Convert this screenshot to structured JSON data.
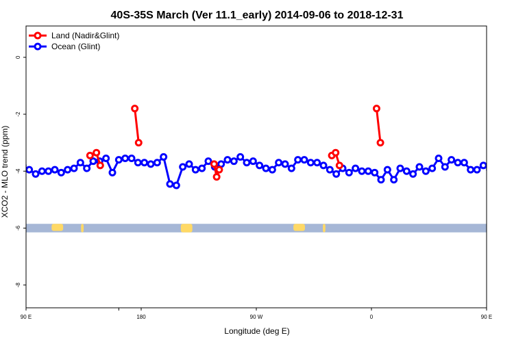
{
  "chart_data": {
    "type": "line",
    "title": "40S-35S March (Ver 11.1_early)   2014-09-06 to 2018-12-31",
    "xlabel": "Longitude (deg E)",
    "ylabel": "XCO2 - MLO trend (ppm)",
    "xlim": [
      90,
      450
    ],
    "ylim": [
      -8.8,
      1.1
    ],
    "x_ticks": [
      {
        "value": 90,
        "label": "90 E"
      },
      {
        "value": 162.5,
        "label": ""
      },
      {
        "value": 180,
        "label": "180"
      },
      {
        "value": 270,
        "label": "90 W"
      },
      {
        "value": 360,
        "label": "0"
      },
      {
        "value": 450,
        "label": "90 E"
      },
      {
        "value": 540,
        "label": "180"
      }
    ],
    "y_ticks": [
      {
        "value": 0,
        "label": "0"
      },
      {
        "value": -2,
        "label": "-2"
      },
      {
        "value": -4,
        "label": "-4"
      },
      {
        "value": -6,
        "label": "-6"
      },
      {
        "value": -8,
        "label": "-8"
      }
    ],
    "legend_position": "top-left",
    "colors": {
      "land": "#ff0000",
      "ocean": "#0000ff",
      "land_mask": "#ffd966",
      "ocean_band": "#a6b7d6"
    },
    "series": [
      {
        "name": "Land (Nadir&Glint)",
        "color": "#ff0000",
        "segments": [
          {
            "x": [
              140,
              145,
              148
            ],
            "y": [
              -3.45,
              -3.35,
              -3.8
            ]
          },
          {
            "x": [
              175,
              178
            ],
            "y": [
              -1.8,
              -3.0
            ]
          },
          {
            "x": [
              237,
              239,
              241
            ],
            "y": [
              -3.75,
              -4.2,
              -3.95
            ]
          },
          {
            "x": [
              329,
              332,
              335
            ],
            "y": [
              -3.45,
              -3.35,
              -3.8
            ]
          },
          {
            "x": [
              364,
              367
            ],
            "y": [
              -1.8,
              -3.0
            ]
          }
        ]
      },
      {
        "name": "Ocean (Glint)",
        "color": "#0000ff",
        "segments": [
          {
            "x": [
              2.5,
              7.5,
              12.5,
              17.5,
              22.5,
              27.5,
              32.5,
              37.5,
              42.5,
              47.5,
              52.5,
              57.5,
              62.5,
              67.5,
              72.5,
              77.5,
              82.5,
              87.5,
              92.5,
              97.5,
              102.5,
              107.5,
              112.5,
              117.5,
              122.5,
              127.5,
              132.5,
              137.5,
              142.5,
              147.5,
              152.5,
              157.5,
              162.5,
              167.5,
              172.5,
              177.5,
              182.5,
              187.5,
              192.5,
              197.5,
              202.5,
              207.5,
              212.5,
              217.5,
              222.5,
              227.5,
              232.5,
              237.5,
              242.5,
              247.5,
              252.5,
              257.5,
              262.5,
              267.5,
              272.5,
              277.5,
              282.5,
              287.5,
              292.5,
              297.5,
              302.5,
              307.5,
              312.5,
              317.5,
              322.5,
              327.5,
              332.5,
              337.5,
              342.5,
              347.5,
              352.5,
              357.5
            ],
            "y": [
              -4.05,
              -4.3,
              -3.95,
              -4.3,
              -3.9,
              -4.0,
              -4.1,
              -3.85,
              -4.0,
              -3.9,
              -3.55,
              -3.85,
              -3.6,
              -3.7,
              -3.7,
              -3.95,
              -3.95,
              -3.8,
              -3.95,
              -4.1,
              -4.0,
              -4.0,
              -3.95,
              -4.05,
              -3.95,
              -3.9,
              -3.7,
              -3.9,
              -3.65,
              -3.65,
              -3.55,
              -4.05,
              -3.6,
              -3.55,
              -3.55,
              -3.7,
              -3.7,
              -3.75,
              -3.7,
              -3.5,
              -4.45,
              -4.5,
              -3.85,
              -3.75,
              -3.95,
              -3.9,
              -3.65,
              -3.85,
              -3.75,
              -3.6,
              -3.65,
              -3.5,
              -3.7,
              -3.65,
              -3.8,
              -3.9,
              -3.95,
              -3.7,
              -3.75,
              -3.9,
              -3.6,
              -3.6,
              -3.7,
              -3.7,
              -3.8,
              -3.95,
              -4.1,
              -3.9,
              -4.05,
              -3.9,
              -4.0,
              -4.0
            ]
          }
        ]
      }
    ]
  }
}
